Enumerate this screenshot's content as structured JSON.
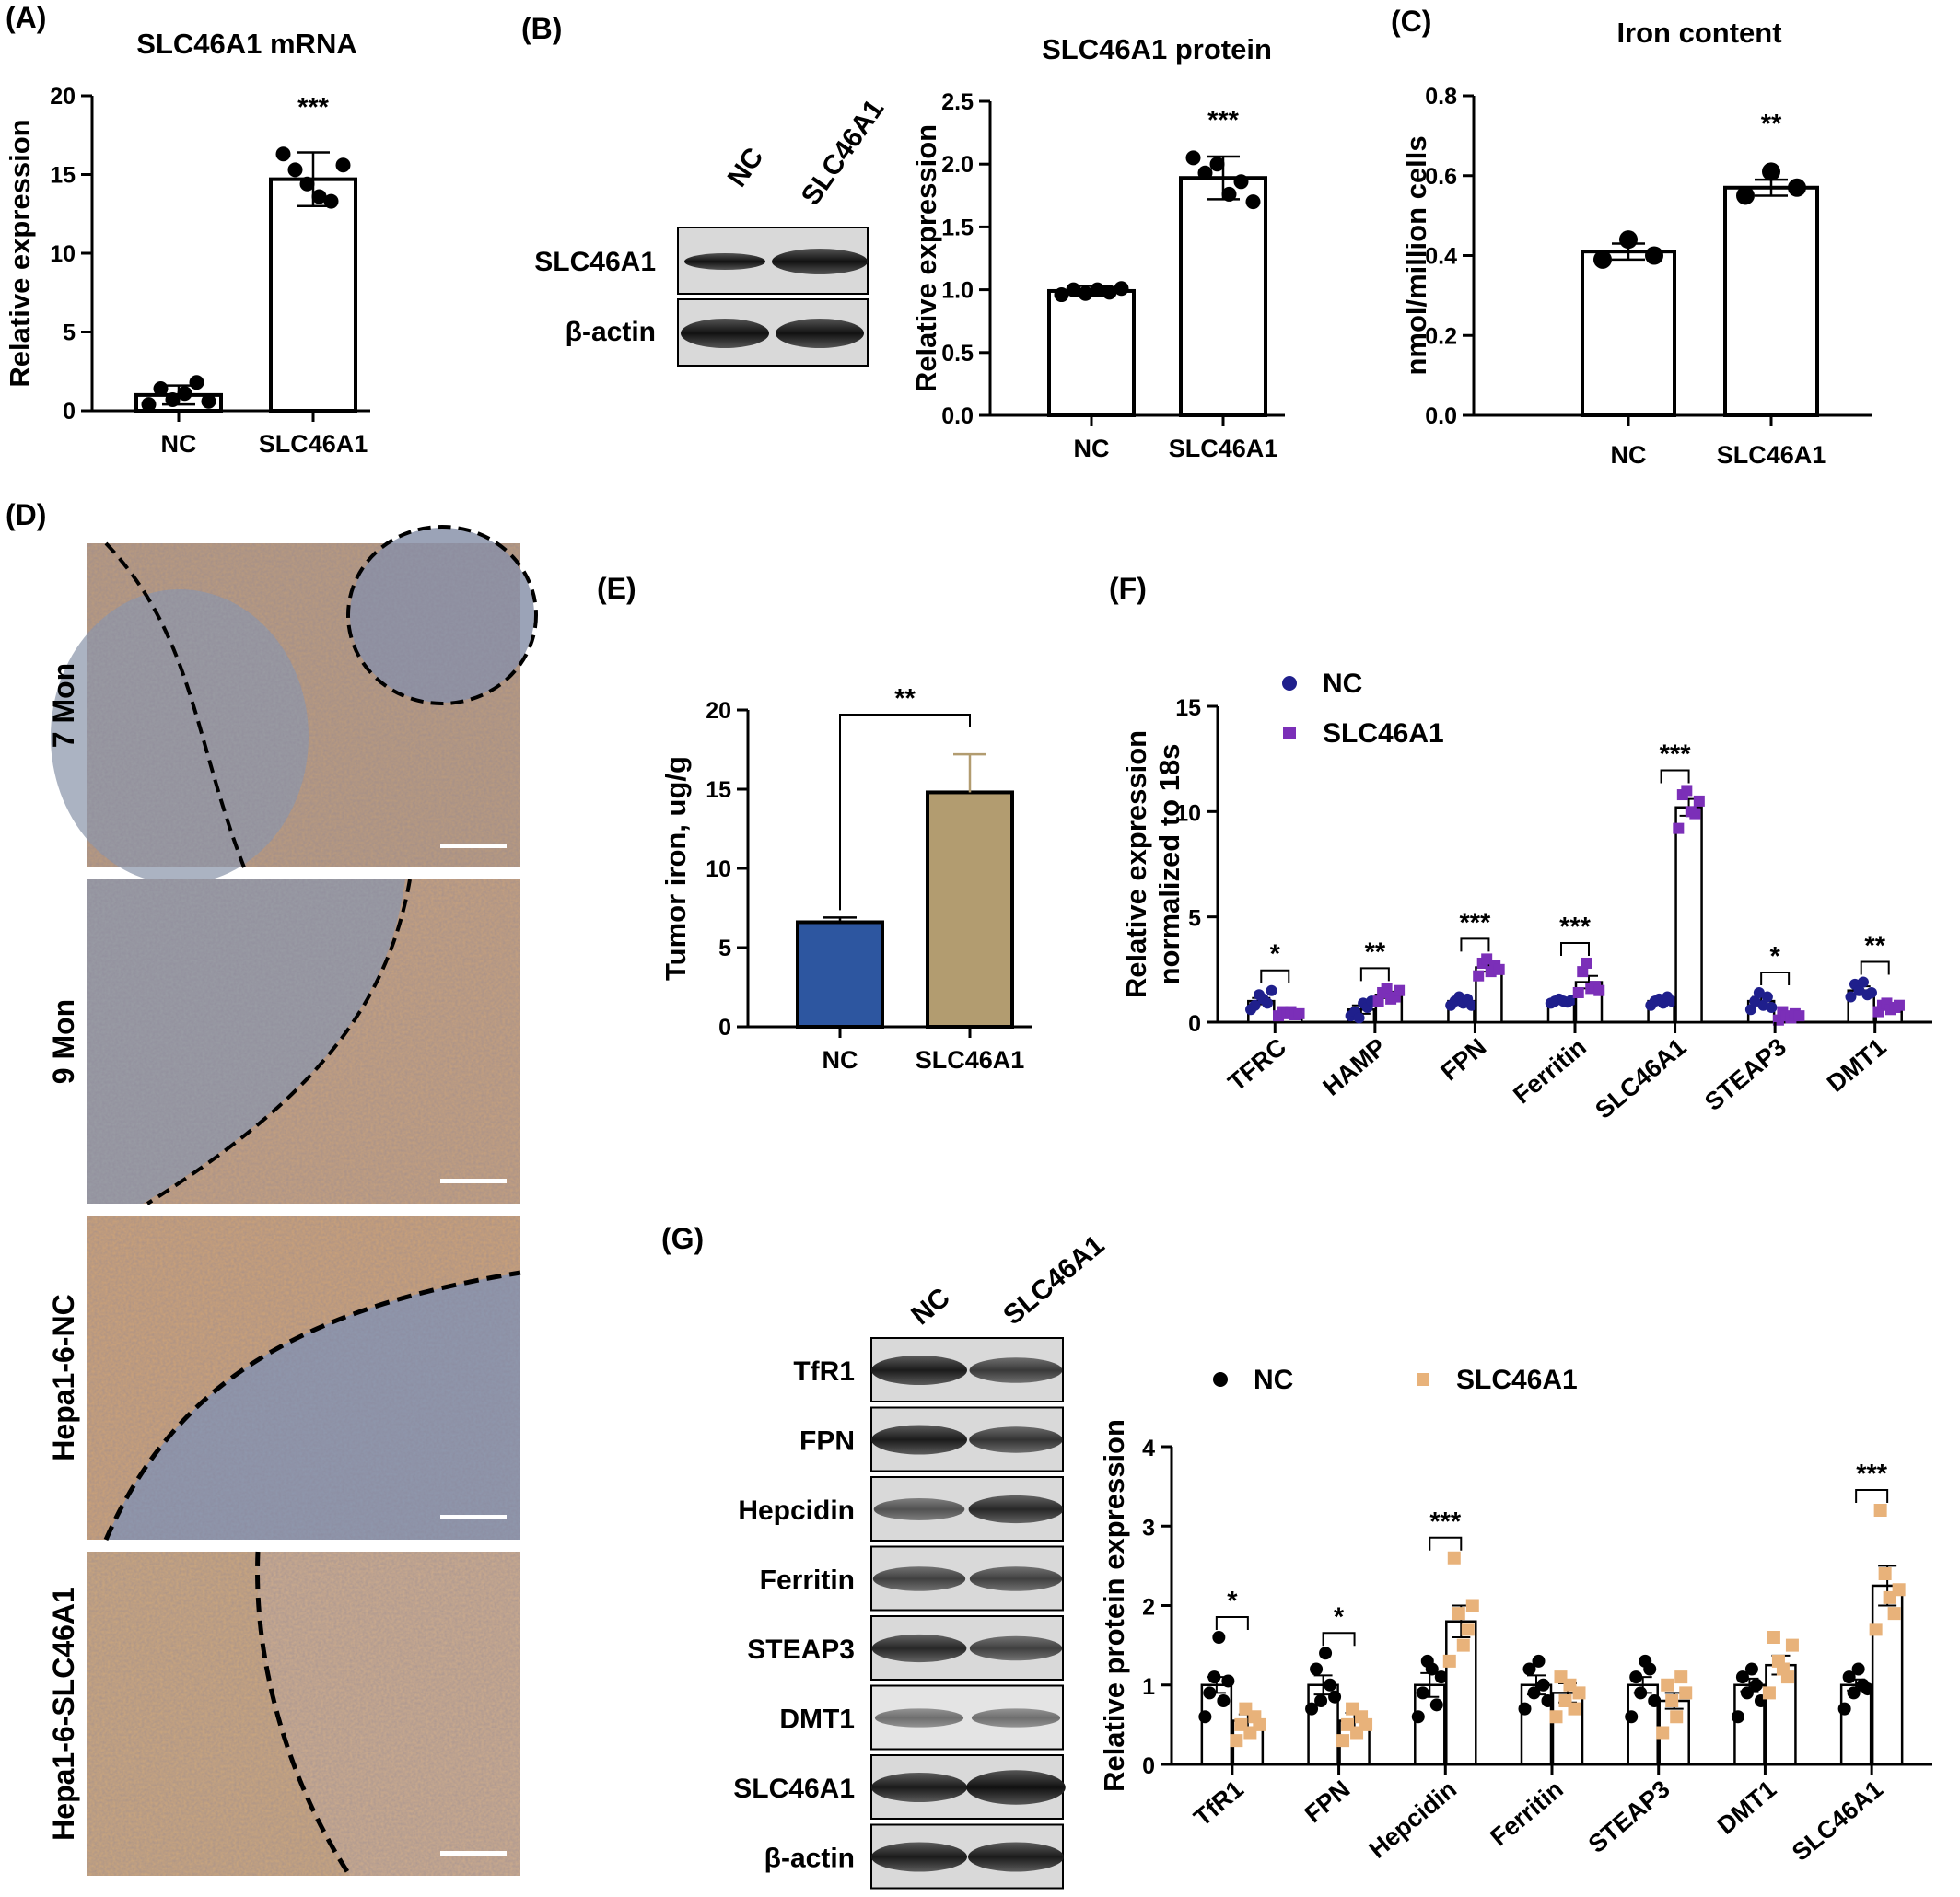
{
  "panels": {
    "A": {
      "label": "(A)"
    },
    "B": {
      "label": "(B)"
    },
    "C": {
      "label": "(C)"
    },
    "D": {
      "label": "(D)",
      "rows": [
        "7 Mon",
        "9 Mon",
        "Hepa1-6-NC",
        "Hepa1-6-SLC46A1"
      ]
    },
    "E": {
      "label": "(E)"
    },
    "F": {
      "label": "(F)"
    },
    "G": {
      "label": "(G)"
    }
  },
  "blot_b": {
    "lanes": [
      "NC",
      "SLC46A1"
    ],
    "rows": [
      "SLC46A1",
      "β-actin"
    ]
  },
  "blot_g": {
    "lanes": [
      "NC",
      "SLC46A1"
    ],
    "rows": [
      "TfR1",
      "FPN",
      "Hepcidin",
      "Ferritin",
      "STEAP3",
      "DMT1",
      "SLC46A1",
      "β-actin"
    ]
  },
  "colors": {
    "ihc_brown": "#c9a27c",
    "ihc_blue": "#8f9fb8",
    "f_nc": "#1f1f8c",
    "f_slc": "#7b2fb8",
    "e_nc": "#2d56a0",
    "e_slc": "#b29c70",
    "g_nc": "#000000",
    "g_slc": "#e8b27a"
  },
  "chart_data": [
    {
      "id": "A",
      "type": "bar",
      "title": "SLC46A1 mRNA",
      "xlabel": "",
      "ylabel": "Relative expression",
      "categories": [
        "NC",
        "SLC46A1"
      ],
      "values": [
        1.0,
        14.7
      ],
      "errors": [
        0.6,
        1.7
      ],
      "ylim": [
        0,
        20
      ],
      "yticks": [
        0,
        5,
        10,
        15,
        20
      ],
      "points": [
        [
          0.4,
          1.4,
          0.7,
          1.1,
          1.8,
          0.6
        ],
        [
          16.3,
          15.3,
          14.4,
          13.6,
          13.3,
          15.6
        ]
      ],
      "significance": "***"
    },
    {
      "id": "B",
      "type": "bar",
      "title": "SLC46A1 protein",
      "xlabel": "",
      "ylabel": "Relative expression",
      "categories": [
        "NC",
        "SLC46A1"
      ],
      "values": [
        0.99,
        1.89
      ],
      "errors": [
        0.04,
        0.17
      ],
      "ylim": [
        0,
        2.5
      ],
      "yticks": [
        "0.0",
        "0.5",
        "1.0",
        "1.5",
        "2.0",
        "2.5"
      ],
      "points": [
        [
          0.96,
          1.0,
          0.97,
          1.0,
          0.98,
          1.01
        ],
        [
          2.05,
          1.93,
          2.0,
          1.76,
          1.86,
          1.7
        ]
      ],
      "significance": "***"
    },
    {
      "id": "C",
      "type": "bar",
      "title": "Iron content",
      "xlabel": "",
      "ylabel": "nmol/million cells",
      "categories": [
        "NC",
        "SLC46A1"
      ],
      "values": [
        0.41,
        0.57
      ],
      "errors": [
        0.02,
        0.02
      ],
      "ylim": [
        0,
        0.8
      ],
      "yticks": [
        "0.0",
        "0.2",
        "0.4",
        "0.6",
        "0.8"
      ],
      "points": [
        [
          0.39,
          0.44,
          0.4
        ],
        [
          0.55,
          0.61,
          0.57
        ]
      ],
      "significance": "**"
    },
    {
      "id": "E",
      "type": "bar",
      "title": "",
      "xlabel": "",
      "ylabel": "Tumor iron, ug/g",
      "categories": [
        "NC",
        "SLC46A1"
      ],
      "values": [
        6.6,
        14.8
      ],
      "errors": [
        0.3,
        2.4
      ],
      "ylim": [
        0,
        20
      ],
      "yticks": [
        0,
        5,
        10,
        15,
        20
      ],
      "significance": "**"
    },
    {
      "id": "F",
      "type": "bar",
      "title": "",
      "xlabel": "",
      "ylabel": [
        "Relative expression",
        "normalized to 18s"
      ],
      "categories": [
        "TFRC",
        "HAMP",
        "FPN",
        "Ferritin",
        "SLC46A1",
        "STEAP3",
        "DMT1"
      ],
      "ylim": [
        0,
        15
      ],
      "yticks": [
        0,
        5,
        10,
        15
      ],
      "series": [
        {
          "name": "NC",
          "values": [
            1.0,
            0.6,
            1.0,
            1.0,
            1.0,
            1.0,
            1.5
          ],
          "errors": [
            0.15,
            0.2,
            0.1,
            0.05,
            0.08,
            0.2,
            0.2
          ],
          "points": [
            [
              0.6,
              0.8,
              1.3,
              1.1,
              0.9,
              1.5
            ],
            [
              0.3,
              0.5,
              0.2,
              0.9,
              0.7,
              1.0
            ],
            [
              0.8,
              1.0,
              1.2,
              0.9,
              1.1,
              0.8
            ],
            [
              0.9,
              1.0,
              1.1,
              1.0,
              0.95,
              1.05
            ],
            [
              0.8,
              1.0,
              1.1,
              0.9,
              1.2,
              1.0
            ],
            [
              0.6,
              1.0,
              1.4,
              0.8,
              1.2,
              0.7
            ],
            [
              1.2,
              1.8,
              1.5,
              1.9,
              1.3,
              1.4
            ]
          ]
        },
        {
          "name": "SLC46A1",
          "values": [
            0.4,
            1.3,
            2.6,
            1.9,
            10.2,
            0.3,
            0.7
          ],
          "errors": [
            0.05,
            0.15,
            0.2,
            0.3,
            0.4,
            0.1,
            0.1
          ],
          "points": [
            [
              0.3,
              0.5,
              0.4,
              0.5,
              0.35,
              0.4
            ],
            [
              1.0,
              1.4,
              1.6,
              1.1,
              1.2,
              1.5
            ],
            [
              2.2,
              2.8,
              3.0,
              2.4,
              2.7,
              2.5
            ],
            [
              1.4,
              2.4,
              2.8,
              1.6,
              1.7,
              1.5
            ],
            [
              9.2,
              10.8,
              11.0,
              10.0,
              9.9,
              10.5
            ],
            [
              0.1,
              0.5,
              0.3,
              0.2,
              0.4,
              0.3
            ],
            [
              0.5,
              0.8,
              0.9,
              0.6,
              0.7,
              0.8
            ]
          ]
        }
      ],
      "significance": [
        "*",
        "**",
        "***",
        "***",
        "***",
        "*",
        "**"
      ],
      "legend": "top-left"
    },
    {
      "id": "G",
      "type": "bar",
      "title": "",
      "xlabel": "",
      "ylabel": "Relative protein expression",
      "categories": [
        "TfR1",
        "FPN",
        "Hepcidin",
        "Ferritin",
        "STEAP3",
        "DMT1",
        "SLC46A1"
      ],
      "ylim": [
        0,
        4
      ],
      "yticks": [
        0,
        1,
        2,
        3,
        4
      ],
      "series": [
        {
          "name": "NC",
          "values": [
            1.0,
            1.0,
            1.0,
            1.0,
            1.0,
            1.0,
            1.0
          ],
          "errors": [
            0.1,
            0.12,
            0.15,
            0.12,
            0.1,
            0.08,
            0.07
          ],
          "points": [
            [
              0.6,
              0.9,
              1.1,
              1.6,
              0.8,
              1.05
            ],
            [
              0.7,
              1.2,
              0.8,
              1.4,
              1.0,
              0.85
            ],
            [
              0.6,
              0.9,
              1.3,
              1.2,
              0.75,
              1.1
            ],
            [
              0.7,
              1.2,
              0.9,
              1.3,
              1.0,
              0.8
            ],
            [
              0.6,
              1.1,
              0.9,
              1.3,
              1.2,
              0.8
            ],
            [
              0.6,
              1.1,
              0.9,
              1.2,
              1.0,
              0.8
            ],
            [
              0.7,
              1.1,
              0.9,
              1.2,
              1.0,
              0.95
            ]
          ]
        },
        {
          "name": "SLC46A1",
          "values": [
            0.55,
            0.55,
            1.8,
            0.9,
            0.8,
            1.25,
            2.25
          ],
          "errors": [
            0.08,
            0.1,
            0.2,
            0.12,
            0.1,
            0.12,
            0.25
          ],
          "points": [
            [
              0.3,
              0.5,
              0.7,
              0.4,
              0.6,
              0.5
            ],
            [
              0.3,
              0.5,
              0.7,
              0.4,
              0.6,
              0.5
            ],
            [
              1.3,
              2.6,
              1.9,
              1.5,
              1.7,
              2.0
            ],
            [
              0.6,
              1.1,
              0.8,
              1.0,
              0.7,
              0.9
            ],
            [
              0.4,
              1.0,
              0.8,
              0.6,
              1.1,
              0.9
            ],
            [
              0.9,
              1.6,
              1.3,
              1.2,
              1.1,
              1.5
            ],
            [
              1.7,
              3.2,
              2.4,
              2.1,
              1.9,
              2.2
            ]
          ]
        }
      ],
      "significance": [
        "*",
        "*",
        "***",
        "",
        "",
        "",
        "***"
      ],
      "legend": "top"
    }
  ]
}
